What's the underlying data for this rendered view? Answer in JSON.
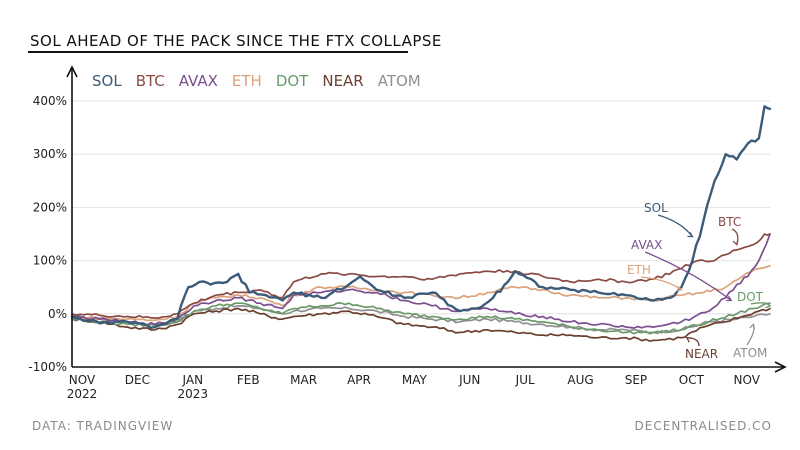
{
  "colors": {
    "SOL": "#3b5b78",
    "BTC": "#8a4b44",
    "AVAX": "#7b4e8f",
    "ETH": "#dca27c",
    "DOT": "#6a9a6a",
    "NEAR": "#6b3f30",
    "ATOM": "#8f8f8f",
    "grid": "#e2e2e2",
    "axis": "#111111"
  },
  "source_label": "DATA:  TRADINGVIEW",
  "brand_label": "DECENTRALISED.CO",
  "chart_data": {
    "type": "line",
    "title": "SOL AHEAD OF THE PACK SINCE THE FTX COLLAPSE",
    "xlabel": "",
    "ylabel": "",
    "ylim": [
      -100,
      430
    ],
    "yticks": [
      -100,
      0,
      100,
      200,
      300,
      400
    ],
    "ytick_labels": [
      "-100%",
      "0%",
      "100%",
      "200%",
      "300%",
      "400%"
    ],
    "x_range": [
      0,
      12.6
    ],
    "xtick_labels": [
      {
        "x": 0,
        "line1": "NOV",
        "line2": "2022"
      },
      {
        "x": 1,
        "line1": "DEC",
        "line2": ""
      },
      {
        "x": 2,
        "line1": "JAN",
        "line2": "2023"
      },
      {
        "x": 3,
        "line1": "FEB",
        "line2": ""
      },
      {
        "x": 4,
        "line1": "MAR",
        "line2": ""
      },
      {
        "x": 5,
        "line1": "APR",
        "line2": ""
      },
      {
        "x": 6,
        "line1": "MAY",
        "line2": ""
      },
      {
        "x": 7,
        "line1": "JUN",
        "line2": ""
      },
      {
        "x": 8,
        "line1": "JUL",
        "line2": ""
      },
      {
        "x": 9,
        "line1": "AUG",
        "line2": ""
      },
      {
        "x": 10,
        "line1": "SEP",
        "line2": ""
      },
      {
        "x": 11,
        "line1": "OCT",
        "line2": ""
      },
      {
        "x": 12,
        "line1": "NOV",
        "line2": ""
      }
    ],
    "legend": [
      "SOL",
      "BTC",
      "AVAX",
      "ETH",
      "DOT",
      "NEAR",
      "ATOM"
    ],
    "legend_position": "top-left",
    "series": [
      {
        "name": "SOL",
        "x": [
          0,
          0.5,
          1,
          1.5,
          1.9,
          2.1,
          2.3,
          2.5,
          2.8,
          3.0,
          3.2,
          3.5,
          3.8,
          4.0,
          4.5,
          5.0,
          5.2,
          5.5,
          6.0,
          6.5,
          7.0,
          7.3,
          7.6,
          8.0,
          8.5,
          9.0,
          9.5,
          10.0,
          10.5,
          10.8,
          11.0,
          11.2,
          11.4,
          11.6,
          11.8,
          12.0,
          12.2,
          12.4,
          12.5,
          12.6
        ],
        "y": [
          -5,
          -18,
          -15,
          -25,
          -10,
          50,
          60,
          55,
          60,
          75,
          40,
          35,
          25,
          40,
          30,
          55,
          70,
          45,
          30,
          40,
          5,
          10,
          30,
          80,
          50,
          45,
          40,
          35,
          25,
          30,
          50,
          100,
          175,
          250,
          300,
          290,
          320,
          330,
          390,
          385
        ]
      },
      {
        "name": "BTC",
        "x": [
          0,
          0.5,
          1,
          1.5,
          1.9,
          2.2,
          2.6,
          3.0,
          3.4,
          3.8,
          4.0,
          4.5,
          5.0,
          5.5,
          6.0,
          6.5,
          7.0,
          7.5,
          8.0,
          8.5,
          9.0,
          9.5,
          10.0,
          10.5,
          11.0,
          11.3,
          11.6,
          12.0,
          12.3,
          12.5,
          12.6
        ],
        "y": [
          0,
          -3,
          -5,
          -8,
          0,
          20,
          35,
          40,
          45,
          30,
          60,
          75,
          75,
          70,
          70,
          65,
          75,
          80,
          80,
          70,
          60,
          65,
          60,
          65,
          85,
          100,
          100,
          120,
          130,
          150,
          150
        ]
      },
      {
        "name": "AVAX",
        "x": [
          0,
          0.5,
          1,
          1.5,
          1.9,
          2.2,
          2.6,
          3.0,
          3.4,
          3.8,
          4.0,
          4.5,
          5.0,
          5.5,
          6.0,
          6.5,
          7.0,
          7.5,
          8.0,
          8.5,
          9.0,
          9.5,
          10.0,
          10.5,
          11.0,
          11.5,
          11.8,
          12.0,
          12.2,
          12.4,
          12.6
        ],
        "y": [
          -5,
          -10,
          -15,
          -20,
          -10,
          15,
          25,
          30,
          20,
          10,
          35,
          40,
          45,
          40,
          25,
          15,
          5,
          10,
          0,
          -5,
          -15,
          -20,
          -25,
          -25,
          -15,
          5,
          30,
          55,
          70,
          100,
          150
        ]
      },
      {
        "name": "ETH",
        "x": [
          0,
          0.5,
          1,
          1.5,
          1.9,
          2.2,
          2.6,
          3.0,
          3.4,
          3.8,
          4.0,
          4.5,
          5.0,
          5.5,
          6.0,
          6.5,
          7.0,
          7.5,
          8.0,
          8.5,
          9.0,
          9.5,
          10.0,
          10.5,
          11.0,
          11.4,
          11.8,
          12.1,
          12.4,
          12.6
        ],
        "y": [
          -5,
          -8,
          -10,
          -12,
          -5,
          20,
          30,
          35,
          30,
          15,
          35,
          50,
          50,
          45,
          40,
          35,
          30,
          40,
          50,
          45,
          35,
          30,
          30,
          25,
          35,
          40,
          50,
          70,
          85,
          90
        ]
      },
      {
        "name": "DOT",
        "x": [
          0,
          0.5,
          1,
          1.5,
          1.9,
          2.2,
          2.6,
          3.0,
          3.4,
          3.8,
          4.0,
          4.5,
          5.0,
          5.5,
          6.0,
          6.5,
          7.0,
          7.5,
          8.0,
          8.5,
          9.0,
          9.5,
          10.0,
          10.5,
          11.0,
          11.5,
          12.0,
          12.3,
          12.6
        ],
        "y": [
          -10,
          -15,
          -20,
          -22,
          -15,
          5,
          15,
          20,
          10,
          0,
          10,
          15,
          20,
          10,
          0,
          -5,
          -10,
          -5,
          -10,
          -15,
          -25,
          -30,
          -35,
          -35,
          -30,
          -15,
          0,
          10,
          20
        ]
      },
      {
        "name": "NEAR",
        "x": [
          0,
          0.5,
          1,
          1.5,
          1.9,
          2.2,
          2.6,
          3.0,
          3.4,
          3.8,
          4.0,
          4.5,
          5.0,
          5.5,
          6.0,
          6.5,
          7.0,
          7.5,
          8.0,
          8.5,
          9.0,
          9.5,
          10.0,
          10.5,
          11.0,
          11.4,
          11.8,
          12.1,
          12.4,
          12.6
        ],
        "y": [
          -10,
          -15,
          -25,
          -30,
          -20,
          0,
          5,
          10,
          0,
          -10,
          -5,
          0,
          5,
          -5,
          -20,
          -25,
          -35,
          -30,
          -35,
          -40,
          -40,
          -45,
          -45,
          -50,
          -45,
          -25,
          -15,
          -5,
          5,
          10
        ]
      },
      {
        "name": "ATOM",
        "x": [
          0,
          0.5,
          1,
          1.5,
          1.9,
          2.2,
          2.6,
          3.0,
          3.4,
          3.8,
          4.0,
          4.5,
          5.0,
          5.5,
          6.0,
          6.5,
          7.0,
          7.5,
          8.0,
          8.5,
          9.0,
          9.5,
          10.0,
          10.5,
          11.0,
          11.5,
          12.0,
          12.3,
          12.6
        ],
        "y": [
          -5,
          -10,
          -15,
          -20,
          -15,
          5,
          10,
          15,
          10,
          0,
          5,
          10,
          10,
          5,
          -5,
          -10,
          -15,
          -10,
          -15,
          -20,
          -25,
          -30,
          -30,
          -35,
          -30,
          -15,
          -10,
          -5,
          0
        ]
      }
    ],
    "annotations": [
      {
        "text": "SOL",
        "series": "SOL",
        "target_x": 11.2,
        "target_y": 145
      },
      {
        "text": "BTC",
        "series": "BTC",
        "target_x": 12.0,
        "target_y": 130
      },
      {
        "text": "AVAX",
        "series": "AVAX",
        "target_x": 11.9,
        "target_y": 25
      },
      {
        "text": "ETH",
        "series": "ETH",
        "target_x": 11.0,
        "target_y": 45
      },
      {
        "text": "DOT",
        "series": "DOT",
        "target_x": 12.6,
        "target_y": 15
      },
      {
        "text": "NEAR",
        "series": "NEAR",
        "target_x": 11.1,
        "target_y": -45
      },
      {
        "text": "ATOM",
        "series": "ATOM",
        "target_x": 12.3,
        "target_y": -20
      }
    ]
  }
}
